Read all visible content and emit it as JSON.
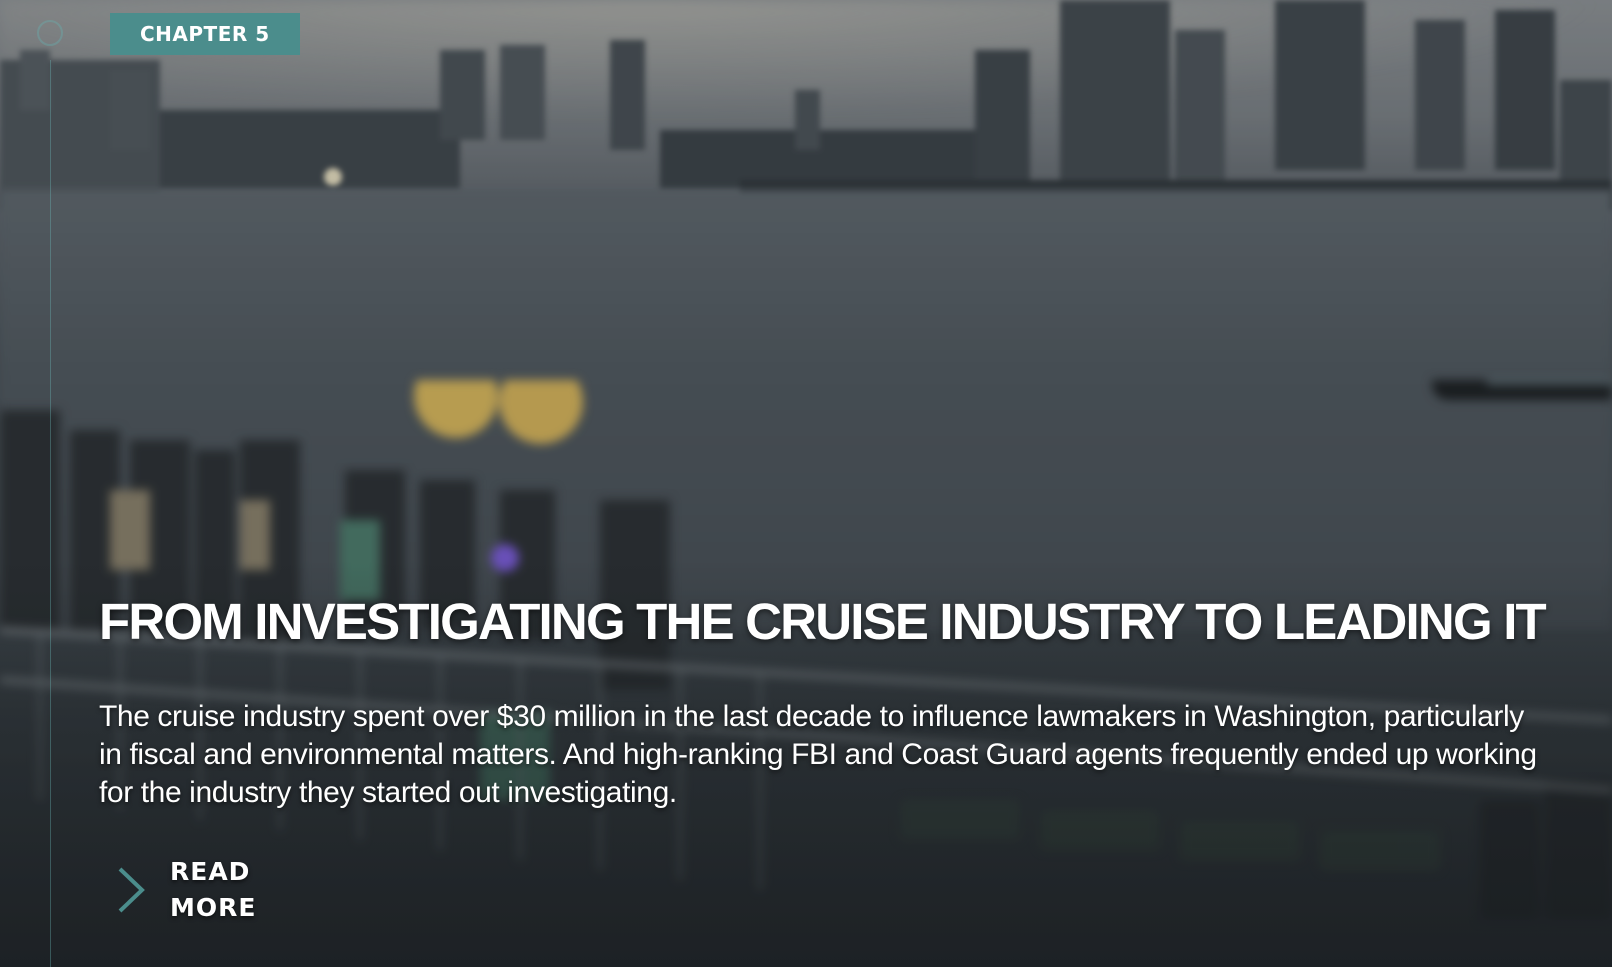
{
  "chapter": {
    "label": "CHAPTER 5"
  },
  "story": {
    "title": "FROM INVESTIGATING THE CRUISE INDUSTRY TO LEADING IT",
    "summary": "The cruise industry spent over $30 million in the last decade to influence lawmakers in Washington, particularly in fiscal and environmental matters. And high-ranking FBI and Coast Guard agents frequently ended up working for the industry they started out investigating."
  },
  "read_more": {
    "label": "READ MORE",
    "icon": "chevron-right-icon"
  },
  "theme": {
    "accent": "#4b8d8c",
    "text": "#ffffff"
  }
}
